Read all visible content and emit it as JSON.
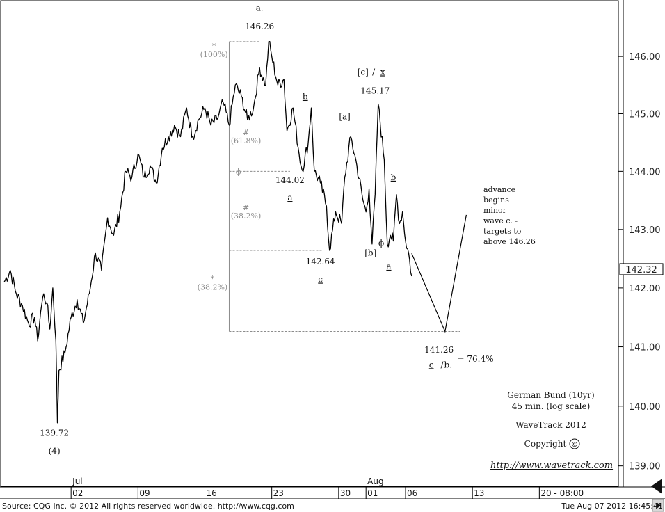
{
  "chart_data": {
    "type": "line",
    "scale": "log",
    "ylim": [
      138.66,
      146.98
    ],
    "y_ticks": [
      "146.00",
      "145.00",
      "144.00",
      "143.00",
      "142.00",
      "141.00",
      "140.00",
      "139.00"
    ],
    "y_tick_values": [
      146,
      145,
      144,
      143,
      142,
      141,
      140,
      139
    ],
    "last_price": "142.32",
    "last_price_value": 142.32,
    "x_ticks": [
      "02",
      "09",
      "16",
      "23",
      "30",
      "01",
      "06",
      "13",
      "20 - 08:00"
    ],
    "x_tick_bars": [
      22,
      44,
      66,
      88,
      110,
      119,
      132,
      154,
      176
    ],
    "month_labels": [
      {
        "label": "Jul",
        "bar": 22
      },
      {
        "label": "Aug",
        "bar": 119
      }
    ],
    "bars_total": 202,
    "series": [
      {
        "price_path": [
          [
            0,
            142.1
          ],
          [
            2,
            142.3
          ],
          [
            4,
            141.9
          ],
          [
            6,
            141.7
          ],
          [
            8,
            141.4
          ],
          [
            10,
            141.5
          ],
          [
            11,
            141.1
          ],
          [
            12,
            141.6
          ],
          [
            13,
            141.9
          ],
          [
            14,
            141.75
          ],
          [
            15,
            141.3
          ],
          [
            16,
            142.0
          ],
          [
            17,
            141.1
          ],
          [
            17.5,
            139.72
          ],
          [
            18,
            140.6
          ],
          [
            20,
            140.9
          ],
          [
            22,
            141.5
          ],
          [
            24,
            141.8
          ],
          [
            26,
            141.4
          ],
          [
            28,
            141.9
          ],
          [
            30,
            142.6
          ],
          [
            32,
            142.3
          ],
          [
            34,
            143.2
          ],
          [
            36,
            142.9
          ],
          [
            38,
            143.3
          ],
          [
            40,
            144.0
          ],
          [
            42,
            143.9
          ],
          [
            44,
            144.3
          ],
          [
            46,
            143.9
          ],
          [
            48,
            144.1
          ],
          [
            50,
            143.8
          ],
          [
            52,
            144.4
          ],
          [
            54,
            144.6
          ],
          [
            56,
            144.8
          ],
          [
            58,
            144.6
          ],
          [
            60,
            145.1
          ],
          [
            62,
            144.6
          ],
          [
            64,
            144.9
          ],
          [
            66,
            145.1
          ],
          [
            68,
            144.8
          ],
          [
            70,
            144.9
          ],
          [
            72,
            145.2
          ],
          [
            74,
            144.8
          ],
          [
            76,
            145.5
          ],
          [
            78,
            145.3
          ],
          [
            80,
            144.9
          ],
          [
            82,
            145.1
          ],
          [
            84,
            145.8
          ],
          [
            86,
            145.5
          ],
          [
            87,
            146.26
          ],
          [
            88,
            146.0
          ],
          [
            90,
            145.5
          ],
          [
            92,
            145.6
          ],
          [
            93,
            144.7
          ],
          [
            95,
            145.1
          ],
          [
            97,
            144.3
          ],
          [
            98,
            144.02
          ],
          [
            100,
            144.5
          ],
          [
            101,
            145.1
          ],
          [
            102,
            144.0
          ],
          [
            104,
            143.8
          ],
          [
            106,
            143.4
          ],
          [
            107,
            142.64
          ],
          [
            109,
            143.3
          ],
          [
            111,
            143.1
          ],
          [
            112,
            143.9
          ],
          [
            114,
            144.6
          ],
          [
            116,
            144.1
          ],
          [
            118,
            143.5
          ],
          [
            119,
            143.3
          ],
          [
            120,
            143.7
          ],
          [
            121,
            142.75
          ],
          [
            122,
            143.6
          ],
          [
            123,
            145.17
          ],
          [
            125,
            144.2
          ],
          [
            126,
            142.75
          ],
          [
            127,
            142.9
          ],
          [
            128,
            142.8
          ],
          [
            129,
            143.6
          ],
          [
            130,
            143.1
          ],
          [
            131,
            143.3
          ],
          [
            132,
            142.8
          ],
          [
            133,
            142.6
          ],
          [
            134,
            142.2
          ]
        ]
      },
      {
        "forecast_path": [
          [
            134,
            142.59
          ],
          [
            145,
            141.26
          ],
          [
            152,
            143.25
          ]
        ]
      }
    ],
    "labels": [
      {
        "text": "a.",
        "bar": 84,
        "price": 146.8
      },
      {
        "text": "146.26",
        "bar": 84,
        "price": 146.48
      },
      {
        "text": "[c]",
        "bar": 118,
        "price": 145.68
      },
      {
        "text": "/",
        "bar": 121.5,
        "price": 145.68
      },
      {
        "text": "x",
        "bar": 124.5,
        "price": 145.68,
        "underline": true
      },
      {
        "text": "145.17",
        "bar": 122,
        "price": 145.35
      },
      {
        "text": "b",
        "bar": 99,
        "price": 145.25,
        "underline": true
      },
      {
        "text": "[a]",
        "bar": 112,
        "price": 144.9
      },
      {
        "text": "144.02",
        "bar": 94,
        "price": 143.8
      },
      {
        "text": "a",
        "bar": 94,
        "price": 143.5,
        "underline": true
      },
      {
        "text": "b",
        "bar": 128,
        "price": 143.85,
        "underline": true
      },
      {
        "text": "[b]",
        "bar": 120.5,
        "price": 142.55
      },
      {
        "text": "142.64",
        "bar": 104,
        "price": 142.4
      },
      {
        "text": "a",
        "bar": 126.5,
        "price": 142.32,
        "underline": true
      },
      {
        "text": "c",
        "bar": 104,
        "price": 142.1,
        "underline": true
      },
      {
        "text": "139.72",
        "bar": 16.5,
        "price": 139.5
      },
      {
        "text": "(4)",
        "bar": 16.5,
        "price": 139.2
      },
      {
        "text": "141.26",
        "bar": 143,
        "price": 140.9
      },
      {
        "text": "c",
        "bar": 140.5,
        "price": 140.65,
        "underline": true
      },
      {
        "text": "/",
        "bar": 144,
        "price": 140.65
      },
      {
        "text": "b.",
        "bar": 146,
        "price": 140.65
      },
      {
        "text": "= 76.4%",
        "bar": 155,
        "price": 140.75
      }
    ],
    "fib_levels": [
      {
        "price": 146.26,
        "bar_start": 74,
        "bar_end": 84
      },
      {
        "price": 144.0,
        "bar_start": 74,
        "bar_end": 94
      },
      {
        "price": 142.64,
        "bar_start": 74,
        "bar_end": 105
      },
      {
        "price": 141.26,
        "bar_start": 74,
        "bar_end": 150
      }
    ],
    "fib_vertical": {
      "bar": 74,
      "price_top": 146.26,
      "price_bottom": 141.26
    },
    "fib_labels": [
      {
        "symbol": "*",
        "text": "(100%)",
        "bar": 69,
        "price": 146.06
      },
      {
        "symbol": "#",
        "text": "(61.8%)",
        "bar": 79.5,
        "price": 144.56
      },
      {
        "symbol": "ϕ",
        "text": "",
        "bar": 77,
        "price": 144.0
      },
      {
        "symbol": "#",
        "text": "(38.2%)",
        "bar": 79.5,
        "price": 143.26
      },
      {
        "symbol": "*",
        "text": "(38.2%)",
        "bar": 68.5,
        "price": 142.04
      }
    ],
    "phi_marker": {
      "symbol": "ϕ",
      "bar": 124,
      "price": 142.72
    },
    "note_lines": [
      "advance",
      "begins",
      "minor",
      "wave c. -",
      "targets to",
      "above 146.26"
    ],
    "info_lines": [
      "German Bund (10yr)",
      "45 min. (log scale)",
      "WaveTrack 2012"
    ],
    "copyright": "Copyright",
    "copyright_symbol": "©",
    "website": "http://www.wavetrack.com"
  },
  "footer": {
    "source": "Source: CQG Inc. © 2012 All rights reserved worldwide. http://www.cqg.com",
    "timestamp": "Tue Aug 07 2012 16:45:41"
  },
  "colors": {
    "price": "#000000",
    "fib": "#8c8c8c",
    "grid": "#000000",
    "last_price_bg": "#ffffff"
  }
}
